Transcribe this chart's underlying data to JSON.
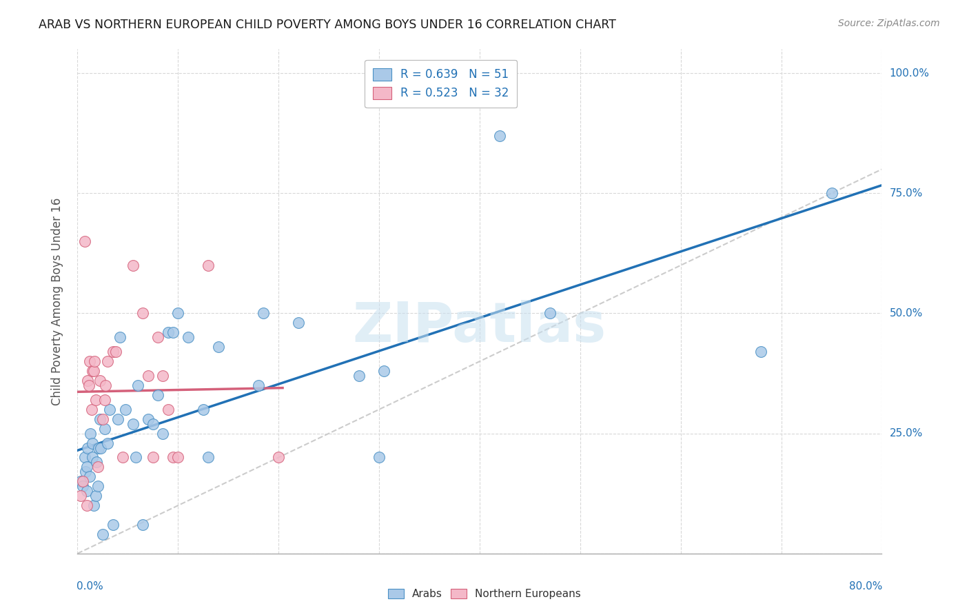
{
  "title": "ARAB VS NORTHERN EUROPEAN CHILD POVERTY AMONG BOYS UNDER 16 CORRELATION CHART",
  "source": "Source: ZipAtlas.com",
  "ylabel": "Child Poverty Among Boys Under 16",
  "xlim": [
    0.0,
    0.8
  ],
  "ylim": [
    0.0,
    1.05
  ],
  "watermark": "ZIPatlas",
  "legend_r1": "R = 0.639   N = 51",
  "legend_r2": "R = 0.523   N = 32",
  "blue_face": "#aac9e8",
  "blue_edge": "#4a90c4",
  "blue_line": "#2171b5",
  "pink_face": "#f4b8c8",
  "pink_edge": "#d4607a",
  "pink_line": "#d4607a",
  "right_label_color": "#2171b5",
  "title_color": "#1a1a1a",
  "source_color": "#888888",
  "grid_color": "#d8d8d8",
  "diag_color": "#cccccc",
  "arab_x": [
    0.003,
    0.005,
    0.007,
    0.008,
    0.009,
    0.009,
    0.01,
    0.012,
    0.013,
    0.015,
    0.015,
    0.016,
    0.018,
    0.019,
    0.02,
    0.021,
    0.022,
    0.023,
    0.025,
    0.027,
    0.03,
    0.032,
    0.035,
    0.04,
    0.042,
    0.048,
    0.055,
    0.058,
    0.06,
    0.065,
    0.07,
    0.075,
    0.08,
    0.085,
    0.09,
    0.095,
    0.1,
    0.11,
    0.125,
    0.13,
    0.14,
    0.18,
    0.185,
    0.22,
    0.28,
    0.3,
    0.305,
    0.42,
    0.47,
    0.68,
    0.75
  ],
  "arab_y": [
    0.15,
    0.14,
    0.2,
    0.17,
    0.13,
    0.18,
    0.22,
    0.16,
    0.25,
    0.2,
    0.23,
    0.1,
    0.12,
    0.19,
    0.14,
    0.22,
    0.28,
    0.22,
    0.04,
    0.26,
    0.23,
    0.3,
    0.06,
    0.28,
    0.45,
    0.3,
    0.27,
    0.2,
    0.35,
    0.06,
    0.28,
    0.27,
    0.33,
    0.25,
    0.46,
    0.46,
    0.5,
    0.45,
    0.3,
    0.2,
    0.43,
    0.35,
    0.5,
    0.48,
    0.37,
    0.2,
    0.38,
    0.87,
    0.5,
    0.42,
    0.75
  ],
  "north_x": [
    0.003,
    0.005,
    0.007,
    0.009,
    0.01,
    0.011,
    0.012,
    0.014,
    0.015,
    0.016,
    0.017,
    0.018,
    0.02,
    0.022,
    0.025,
    0.027,
    0.028,
    0.03,
    0.035,
    0.038,
    0.045,
    0.055,
    0.065,
    0.07,
    0.075,
    0.08,
    0.085,
    0.09,
    0.095,
    0.1,
    0.13,
    0.2
  ],
  "north_y": [
    0.12,
    0.15,
    0.65,
    0.1,
    0.36,
    0.35,
    0.4,
    0.3,
    0.38,
    0.38,
    0.4,
    0.32,
    0.18,
    0.36,
    0.28,
    0.32,
    0.35,
    0.4,
    0.42,
    0.42,
    0.2,
    0.6,
    0.5,
    0.37,
    0.2,
    0.45,
    0.37,
    0.3,
    0.2,
    0.2,
    0.6,
    0.2
  ],
  "yticks": [
    0.0,
    0.25,
    0.5,
    0.75,
    1.0
  ],
  "x_grid_ticks": [
    0.0,
    0.1,
    0.2,
    0.3,
    0.4,
    0.5,
    0.6,
    0.7,
    0.8
  ]
}
